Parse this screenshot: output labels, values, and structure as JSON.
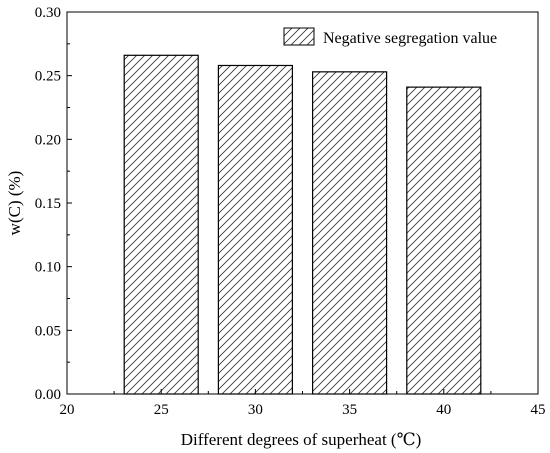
{
  "chart_data": {
    "type": "bar",
    "x": [
      25,
      30,
      35,
      40
    ],
    "series": [
      {
        "name": "Negative segregation value",
        "values": [
          0.266,
          0.258,
          0.253,
          0.241
        ]
      }
    ],
    "xlabel": "Different degrees of superheat (℃)",
    "ylabel": "w(C)  (%)",
    "xlim": [
      20,
      45
    ],
    "ylim": [
      0.0,
      0.3
    ],
    "xticks": [
      "20",
      "25",
      "30",
      "35",
      "40",
      "45"
    ],
    "yticks": [
      "0.00",
      "0.05",
      "0.10",
      "0.15",
      "0.20",
      "0.25",
      "0.30"
    ],
    "bar_fill": "diagonal hatch",
    "legend_position": "top-right",
    "grid": false
  },
  "colors": {
    "axis": "#000000",
    "bar_stroke": "#000000",
    "hatch": "#333333",
    "background": "#ffffff"
  }
}
